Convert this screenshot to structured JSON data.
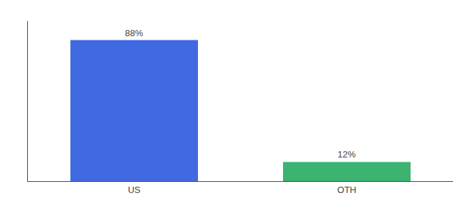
{
  "chart_data": {
    "type": "bar",
    "categories": [
      "US",
      "OTH"
    ],
    "values": [
      88,
      12
    ],
    "value_labels": [
      "88%",
      "12%"
    ],
    "colors": [
      "#4169E1",
      "#3CB371"
    ],
    "ylim": [
      0,
      100
    ],
    "yticks": [],
    "grid": false,
    "data_labels": true,
    "tick_labels": "x"
  }
}
